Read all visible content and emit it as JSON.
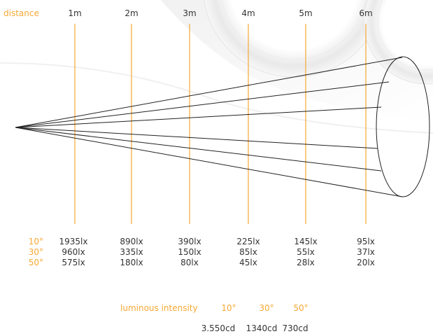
{
  "distance_label": "distance",
  "distances": [
    "1m",
    "2m",
    "3m",
    "4m",
    "5m",
    "6m"
  ],
  "angles": [
    "10°",
    "30°",
    "50°"
  ],
  "illuminance": {
    "10deg": [
      "1935lx",
      "890lx",
      "390lx",
      "225lx",
      "145lx",
      "95lx"
    ],
    "30deg": [
      "960lx",
      "335lx",
      "150lx",
      "85lx",
      "55lx",
      "37lx"
    ],
    "50deg": [
      "575lx",
      "180lx",
      "80lx",
      "45lx",
      "28lx",
      "20lx"
    ]
  },
  "luminous_intensity": {
    "label": "luminous intensity",
    "values": [
      "3.550cd",
      "1340cd",
      "730cd"
    ]
  },
  "colors": {
    "accent": "#f5a833",
    "text": "#333333",
    "line": "#222222"
  }
}
